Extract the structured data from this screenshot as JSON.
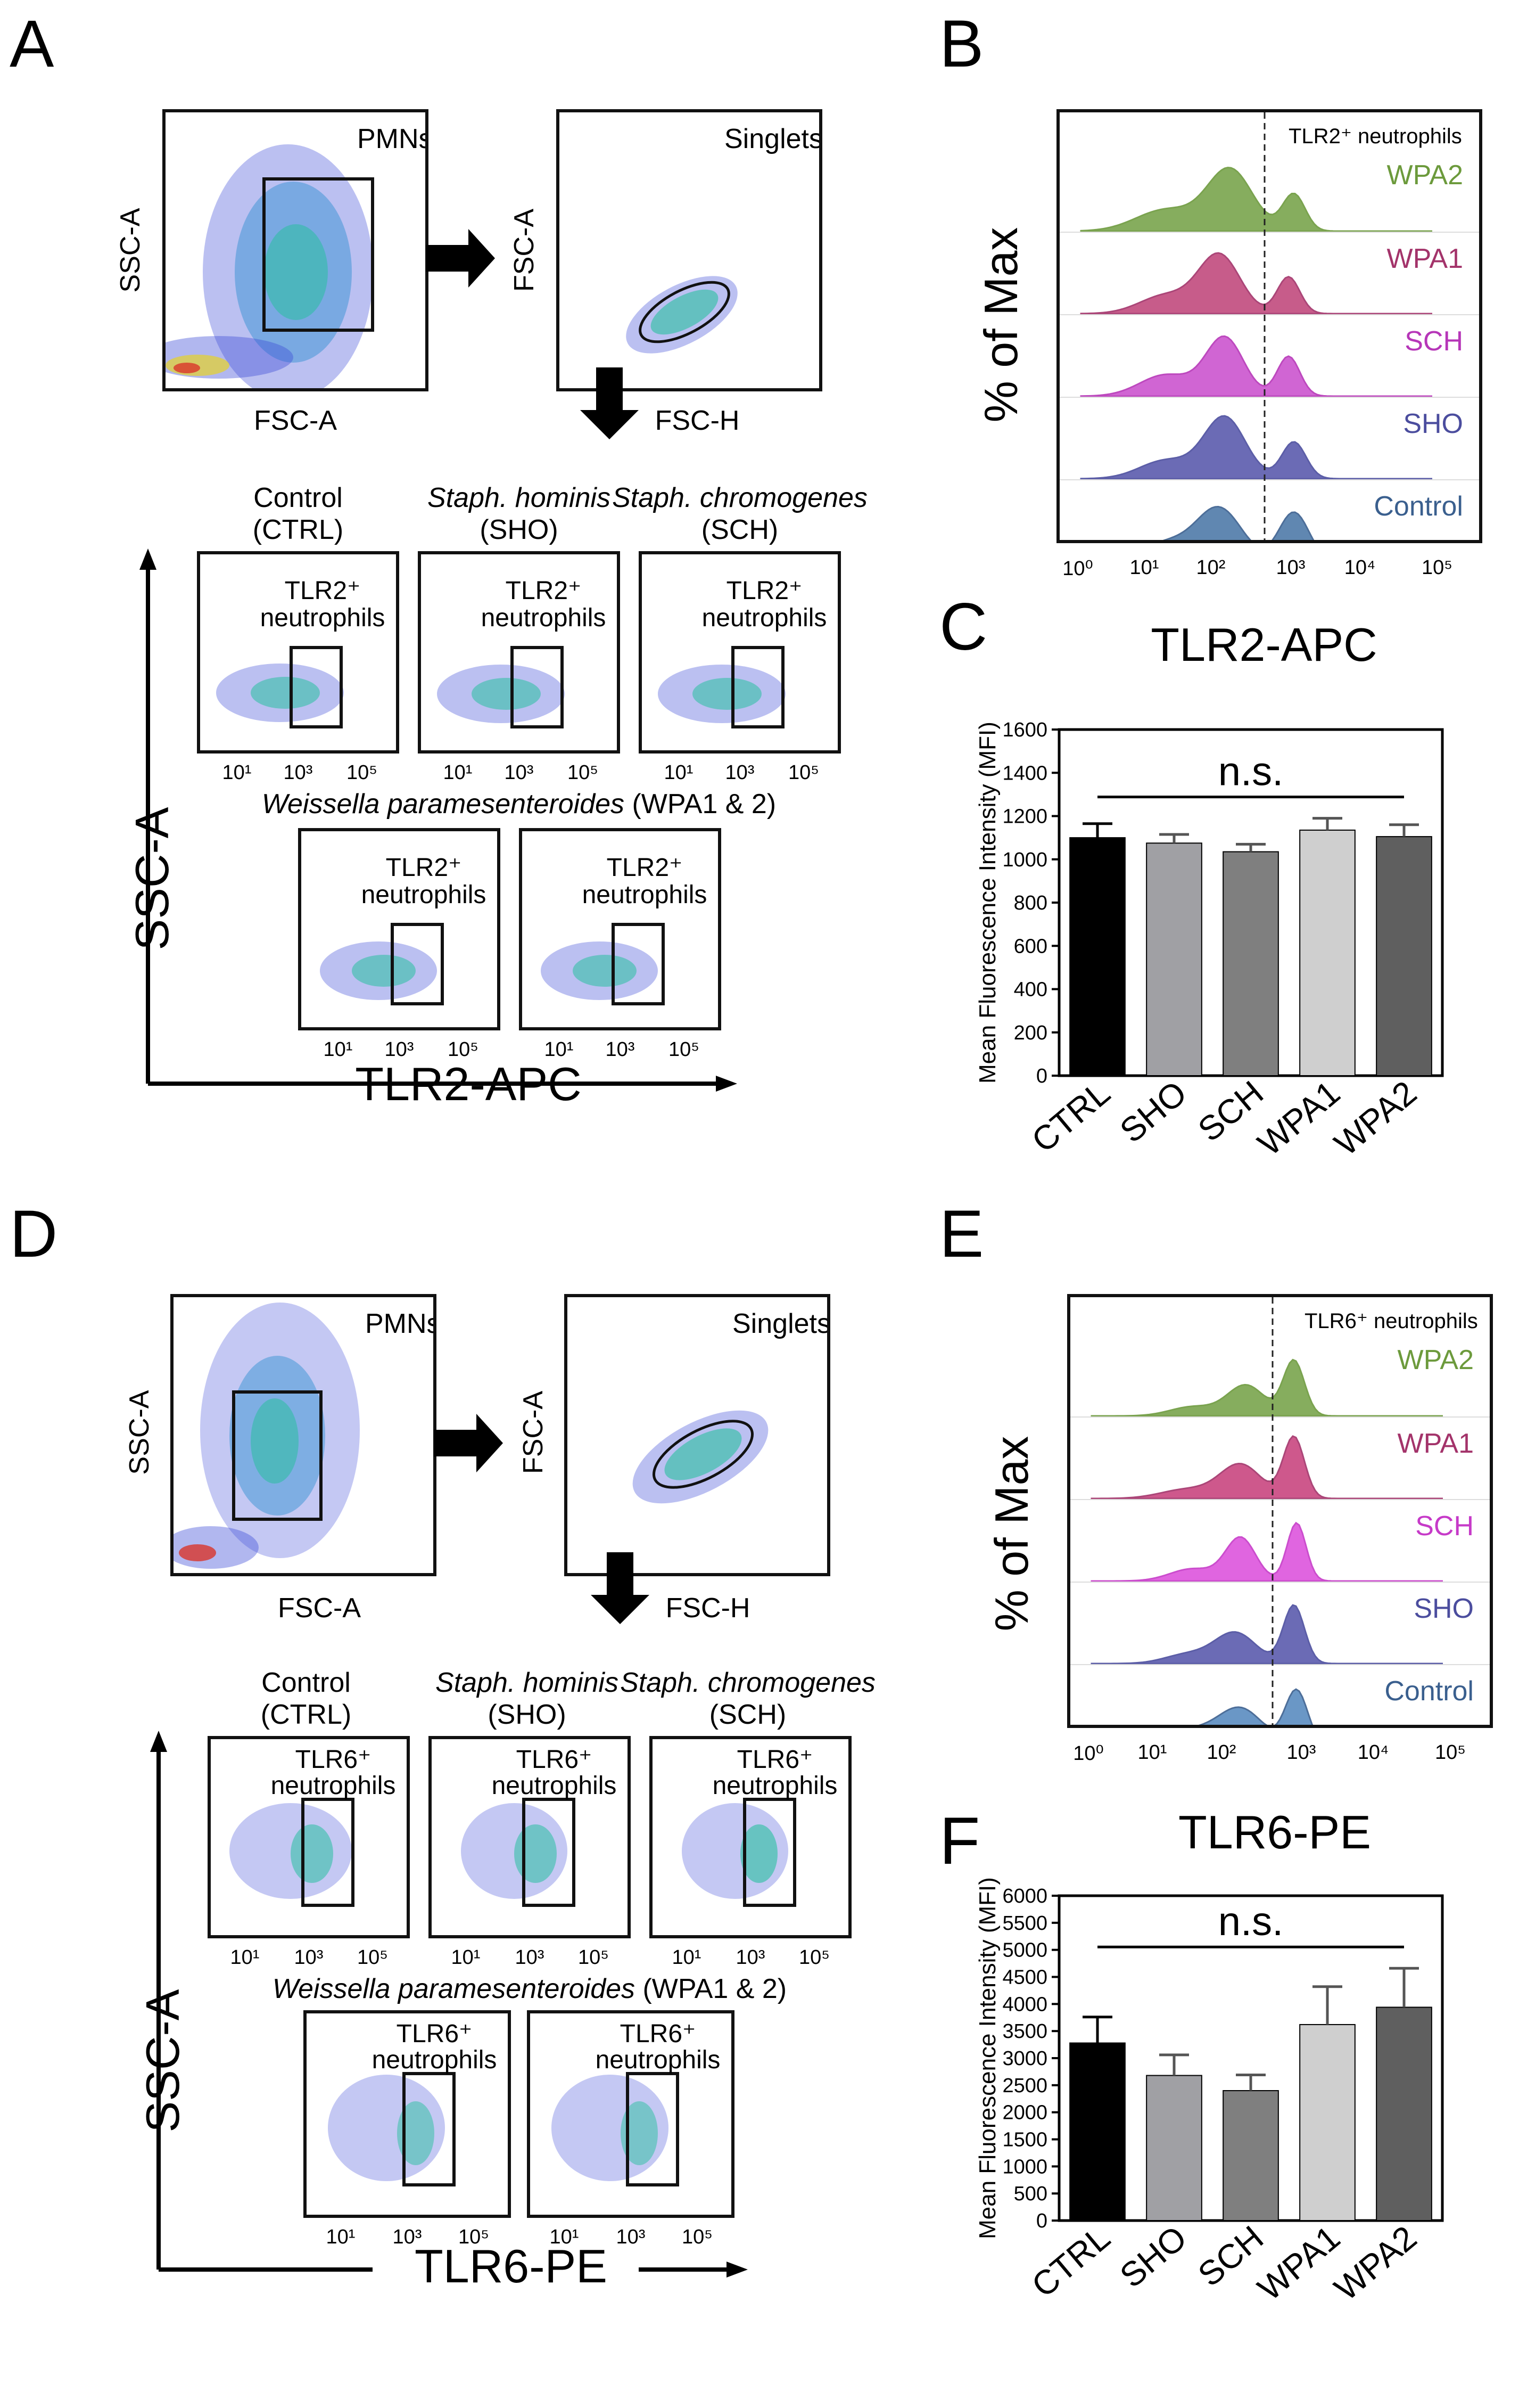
{
  "panel_labels": {
    "a": "A",
    "b": "B",
    "c": "C",
    "d": "D",
    "e": "E",
    "f": "F"
  },
  "panel_a": {
    "pmns_label": "PMNs",
    "singlets_label": "Singlets",
    "ssc_a": "SSC-A",
    "fsc_a": "FSC-A",
    "fsc_h": "FSC-H",
    "group_ctrl": "Control",
    "group_ctrl_abbr": "(CTRL)",
    "group_sho": "Staph. hominis",
    "group_sho_abbr": "(SHO)",
    "group_sch": "Staph. chromogenes",
    "group_sch_abbr": "(SCH)",
    "gate_label_line1": "TLR2⁺",
    "gate_label_line2": "neutrophils",
    "wpa_caption_species": "Weissella paramesenteroides",
    "wpa_caption_suffix": "(WPA1 & 2)",
    "x_ticks": [
      "10¹",
      "10³",
      "10⁵"
    ],
    "axis_y": "SSC-A",
    "axis_x": "TLR2-APC"
  },
  "panel_b": {
    "ylabel": "% of Max",
    "xlabel": "TLR2-APC",
    "marker_label": "TLR2⁺ neutrophils",
    "rows": [
      {
        "name": "WPA2",
        "color": "#6c9a3c",
        "fill": "#7aa54d"
      },
      {
        "name": "WPA1",
        "color": "#a3336a",
        "fill": "#c24b7e"
      },
      {
        "name": "SCH",
        "color": "#b636b8",
        "fill": "#cc55cf"
      },
      {
        "name": "SHO",
        "color": "#4b4d9e",
        "fill": "#5b5cae"
      },
      {
        "name": "Control",
        "color": "#3a5f8e",
        "fill": "#4f7ba9"
      }
    ],
    "x_ticks": [
      "10⁰",
      "10¹",
      "10²",
      "10³",
      "10⁴",
      "10⁵"
    ]
  },
  "panel_e": {
    "ylabel": "% of Max",
    "xlabel": "TLR6-PE",
    "marker_label": "TLR6⁺ neutrophils",
    "rows": [
      {
        "name": "WPA2",
        "color": "#6c9a3c",
        "fill": "#7aa54d"
      },
      {
        "name": "WPA1",
        "color": "#a3336a",
        "fill": "#c94680"
      },
      {
        "name": "SCH",
        "color": "#c63ac8",
        "fill": "#dd55dd"
      },
      {
        "name": "SHO",
        "color": "#4b4d9e",
        "fill": "#5b5cae"
      },
      {
        "name": "Control",
        "color": "#3a5f8e",
        "fill": "#5a8cc0"
      }
    ],
    "x_ticks": [
      "10⁰",
      "10¹",
      "10²",
      "10³",
      "10⁴",
      "10⁵"
    ]
  },
  "panel_d": {
    "pmns_label": "PMNs",
    "singlets_label": "Singlets",
    "ssc_a": "SSC-A",
    "fsc_a": "FSC-A",
    "fsc_h": "FSC-H",
    "group_ctrl": "Control",
    "group_ctrl_abbr": "(CTRL)",
    "group_sho": "Staph. hominis",
    "group_sho_abbr": "(SHO)",
    "group_sch": "Staph. chromogenes",
    "group_sch_abbr": "(SCH)",
    "gate_label_line1": "TLR6⁺",
    "gate_label_line2": "neutrophils",
    "wpa_caption_species": "Weissella paramesenteroides",
    "wpa_caption_suffix": "(WPA1 & 2)",
    "x_ticks": [
      "10¹",
      "10³",
      "10⁵"
    ],
    "axis_y": "SSC-A",
    "axis_x": "TLR6-PE"
  },
  "chart_data": [
    {
      "id": "C",
      "type": "bar",
      "categories": [
        "CTRL",
        "SHO",
        "SCH",
        "WPA1",
        "WPA2"
      ],
      "values": [
        1100,
        1075,
        1035,
        1135,
        1105
      ],
      "errors": [
        65,
        40,
        35,
        55,
        55
      ],
      "colors": [
        "#000000",
        "#a0a0a4",
        "#7f7f7f",
        "#cfcfcf",
        "#5f5f5f"
      ],
      "ylabel": "Mean Fluorescence Intensity (MFI)",
      "ylim": [
        0,
        1600
      ],
      "yticks": [
        0,
        200,
        400,
        600,
        800,
        1000,
        1200,
        1400,
        1600
      ],
      "annotation": "n.s."
    },
    {
      "id": "F",
      "type": "bar",
      "categories": [
        "CTRL",
        "SHO",
        "SCH",
        "WPA1",
        "WPA2"
      ],
      "values": [
        3280,
        2680,
        2400,
        3620,
        3940
      ],
      "errors": [
        480,
        380,
        290,
        700,
        720
      ],
      "colors": [
        "#000000",
        "#a0a0a4",
        "#7f7f7f",
        "#cfcfcf",
        "#5f5f5f"
      ],
      "ylabel": "Mean Fluorescence Intensity (MFI)",
      "ylim": [
        0,
        6000
      ],
      "yticks": [
        0,
        500,
        1000,
        1500,
        2000,
        2500,
        3000,
        3500,
        4000,
        4500,
        5000,
        5500,
        6000
      ],
      "annotation": "n.s."
    }
  ]
}
